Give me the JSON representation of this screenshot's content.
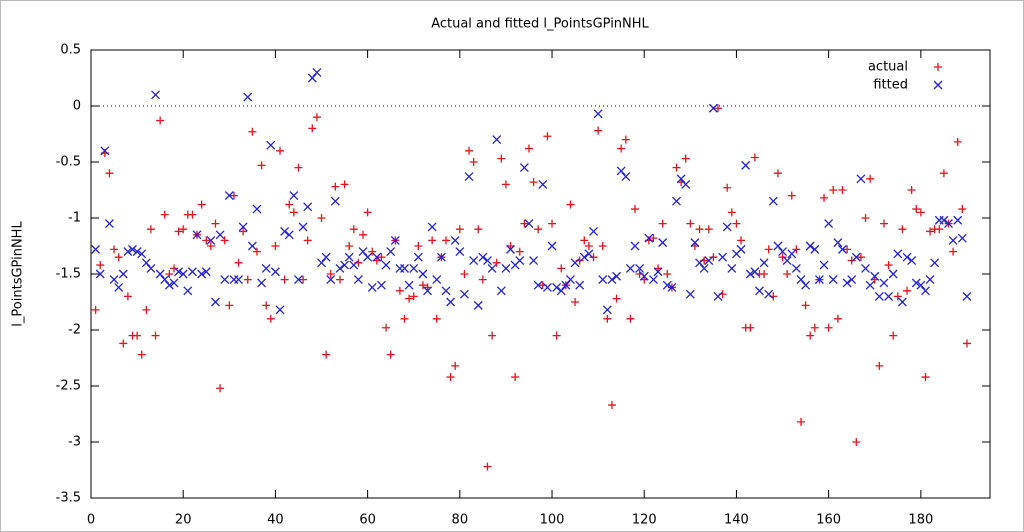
{
  "chart_data": {
    "type": "scatter",
    "title": "Actual and fitted l_PointsGPinNHL",
    "ylabel": "l_PointsGPinNHL",
    "xlim": [
      0,
      195
    ],
    "ylim": [
      -3.5,
      0.5
    ],
    "xticks": [
      0,
      20,
      40,
      60,
      80,
      100,
      120,
      140,
      160,
      180
    ],
    "yticks": [
      {
        "value": -3.5,
        "label": "-3.5"
      },
      {
        "value": -3,
        "label": "-3"
      },
      {
        "value": -2.5,
        "label": "-2.5"
      },
      {
        "value": -2,
        "label": "-2"
      },
      {
        "value": -1.5,
        "label": "-1.5"
      },
      {
        "value": -1,
        "label": "-1"
      },
      {
        "value": -0.5,
        "label": "-0.5"
      },
      {
        "value": 0,
        "label": "0"
      },
      {
        "value": 0.5,
        "label": "0.5"
      }
    ],
    "zero_line": true,
    "legend": "top-right",
    "x": [
      1,
      2,
      3,
      4,
      5,
      6,
      7,
      8,
      9,
      10,
      11,
      12,
      13,
      14,
      15,
      16,
      17,
      18,
      19,
      20,
      21,
      22,
      23,
      24,
      25,
      26,
      27,
      28,
      29,
      30,
      31,
      32,
      33,
      34,
      35,
      36,
      37,
      38,
      39,
      40,
      41,
      42,
      43,
      44,
      45,
      46,
      47,
      48,
      49,
      50,
      51,
      52,
      53,
      54,
      55,
      56,
      57,
      58,
      59,
      60,
      61,
      62,
      63,
      64,
      65,
      66,
      67,
      68,
      69,
      70,
      71,
      72,
      73,
      74,
      75,
      76,
      77,
      78,
      79,
      80,
      81,
      82,
      83,
      84,
      85,
      86,
      87,
      88,
      89,
      90,
      91,
      92,
      93,
      94,
      95,
      96,
      97,
      98,
      99,
      100,
      101,
      102,
      103,
      104,
      105,
      106,
      107,
      108,
      109,
      110,
      111,
      112,
      113,
      114,
      115,
      116,
      117,
      118,
      119,
      120,
      121,
      122,
      123,
      124,
      125,
      126,
      127,
      128,
      129,
      130,
      131,
      132,
      133,
      134,
      135,
      136,
      137,
      138,
      139,
      140,
      141,
      142,
      143,
      144,
      145,
      146,
      147,
      148,
      149,
      150,
      151,
      152,
      153,
      154,
      155,
      156,
      157,
      158,
      159,
      160,
      161,
      162,
      163,
      164,
      165,
      166,
      167,
      168,
      169,
      170,
      171,
      172,
      173,
      174,
      175,
      176,
      177,
      178,
      179,
      180,
      181,
      182,
      183,
      184,
      185,
      186,
      187,
      188,
      189,
      190
    ],
    "series": [
      {
        "name": "actual",
        "color": "#e8141c",
        "marker": "plus",
        "values": [
          -1.82,
          -1.42,
          -0.42,
          -0.6,
          -1.28,
          -1.35,
          -2.12,
          -1.7,
          -2.05,
          -2.05,
          -2.22,
          -1.82,
          -1.1,
          -2.05,
          -0.13,
          -0.97,
          -1.5,
          -1.45,
          -1.12,
          -1.1,
          -0.97,
          -0.97,
          -1.15,
          -0.88,
          -1.2,
          -1.25,
          -1.05,
          -2.52,
          -1.2,
          -1.78,
          -0.8,
          -1.4,
          -1.12,
          -1.55,
          -0.23,
          -1.3,
          -0.53,
          -1.78,
          -1.9,
          -1.25,
          -0.4,
          -1.55,
          -0.88,
          -0.95,
          -0.55,
          -1.55,
          -1.2,
          -0.2,
          -0.1,
          -1.0,
          -2.22,
          -1.5,
          -0.72,
          -1.55,
          -0.7,
          -1.25,
          -1.1,
          -1.4,
          -1.15,
          -0.95,
          -1.3,
          -1.38,
          -1.35,
          -1.98,
          -2.22,
          -1.2,
          -1.65,
          -1.9,
          -1.72,
          -1.7,
          -1.25,
          -1.6,
          -1.62,
          -1.2,
          -1.9,
          -1.35,
          -1.2,
          -2.42,
          -2.32,
          -1.1,
          -1.5,
          -0.4,
          -0.5,
          -1.1,
          -1.55,
          -3.22,
          -2.05,
          -1.4,
          -0.47,
          -0.7,
          -1.25,
          -2.42,
          -1.3,
          -1.05,
          -0.38,
          -0.68,
          -1.1,
          -1.6,
          -0.27,
          -1.05,
          -2.05,
          -1.45,
          -1.6,
          -0.88,
          -1.75,
          -1.38,
          -1.2,
          -1.25,
          -1.35,
          -0.22,
          -1.25,
          -1.9,
          -2.67,
          -1.72,
          -0.38,
          -0.3,
          -1.9,
          -0.92,
          -1.5,
          -1.55,
          -1.2,
          -1.18,
          -1.45,
          -1.05,
          -1.5,
          -1.62,
          -0.55,
          -0.68,
          -0.47,
          -1.05,
          -1.25,
          -1.1,
          -1.38,
          -1.1,
          -1.35,
          -0.02,
          -1.68,
          -0.73,
          -0.95,
          -1.05,
          -1.2,
          -1.98,
          -1.98,
          -0.46,
          -1.5,
          -1.5,
          -1.28,
          -1.7,
          -0.6,
          -1.35,
          -1.5,
          -0.8,
          -1.28,
          -2.82,
          -1.78,
          -2.05,
          -1.98,
          -1.55,
          -0.82,
          -1.98,
          -0.75,
          -1.9,
          -0.75,
          -1.28,
          -1.38,
          -3.0,
          -1.35,
          -1.0,
          -0.65,
          -1.55,
          -2.32,
          -1.05,
          -1.42,
          -2.05,
          -1.7,
          -1.1,
          -1.65,
          -0.75,
          -0.92,
          -0.95,
          -2.42,
          -1.12,
          -1.1,
          -1.1,
          -0.6,
          -1.05,
          -1.3,
          -0.32,
          -0.92,
          -2.12
        ]
      },
      {
        "name": "fitted",
        "color": "#2020d8",
        "marker": "cross",
        "values": [
          -1.28,
          -1.5,
          -0.4,
          -1.05,
          -1.55,
          -1.62,
          -1.5,
          -1.3,
          -1.28,
          -1.3,
          -1.32,
          -1.4,
          -1.45,
          0.1,
          -1.5,
          -1.55,
          -1.6,
          -1.58,
          -1.48,
          -1.5,
          -1.65,
          -1.48,
          -1.15,
          -1.5,
          -1.48,
          -1.2,
          -1.75,
          -1.15,
          -1.55,
          -0.8,
          -1.55,
          -1.55,
          -1.08,
          0.08,
          -1.25,
          -0.92,
          -1.58,
          -1.45,
          -0.35,
          -1.48,
          -1.82,
          -1.12,
          -1.15,
          -0.8,
          -1.55,
          -1.08,
          -0.9,
          0.25,
          0.3,
          -1.4,
          -1.35,
          -1.55,
          -0.85,
          -1.45,
          -1.42,
          -1.35,
          -1.42,
          -1.55,
          -1.3,
          -1.35,
          -1.62,
          -1.35,
          -1.6,
          -1.42,
          -1.3,
          -1.2,
          -1.45,
          -1.45,
          -1.6,
          -1.45,
          -1.35,
          -1.5,
          -1.65,
          -1.08,
          -1.55,
          -1.35,
          -1.65,
          -1.75,
          -1.2,
          -1.3,
          -1.68,
          -0.63,
          -1.38,
          -1.78,
          -1.35,
          -1.38,
          -1.45,
          -0.3,
          -1.65,
          -1.45,
          -1.28,
          -1.42,
          -1.38,
          -0.55,
          -1.05,
          -1.38,
          -1.6,
          -0.7,
          -1.62,
          -1.25,
          -1.62,
          -1.65,
          -1.6,
          -1.55,
          -1.4,
          -1.6,
          -1.35,
          -1.32,
          -1.12,
          -0.07,
          -1.55,
          -1.82,
          -1.55,
          -1.52,
          -0.58,
          -0.63,
          -1.45,
          -1.25,
          -1.45,
          -1.52,
          -1.18,
          -1.55,
          -1.48,
          -1.22,
          -1.6,
          -1.62,
          -0.85,
          -0.65,
          -0.7,
          -1.68,
          -1.22,
          -1.4,
          -1.45,
          -1.38,
          -0.02,
          -1.7,
          -1.35,
          -1.08,
          -1.45,
          -1.32,
          -1.28,
          -0.53,
          -1.5,
          -1.48,
          -1.65,
          -1.4,
          -1.68,
          -0.85,
          -1.25,
          -1.3,
          -1.38,
          -1.32,
          -1.45,
          -1.55,
          -1.6,
          -1.25,
          -1.28,
          -1.55,
          -1.42,
          -1.05,
          -1.55,
          -1.22,
          -1.28,
          -1.58,
          -1.55,
          -1.35,
          -0.65,
          -1.45,
          -1.6,
          -1.52,
          -1.7,
          -1.58,
          -1.7,
          -1.5,
          -1.32,
          -1.75,
          -1.35,
          -1.38,
          -1.58,
          -1.6,
          -1.65,
          -1.55,
          -1.4,
          -1.02,
          -1.02,
          -1.05,
          -1.2,
          -1.02,
          -1.18,
          -1.7
        ]
      }
    ]
  }
}
